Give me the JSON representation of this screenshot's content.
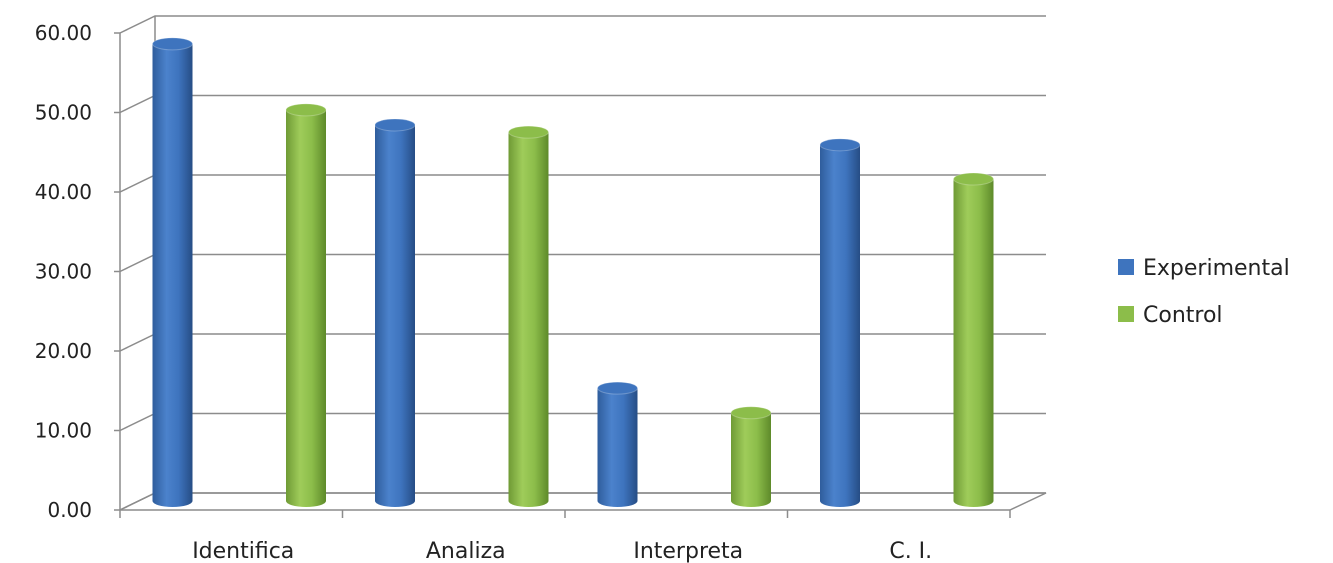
{
  "chart_data": {
    "type": "bar",
    "style": "3d-cylinder",
    "title": "",
    "xlabel": "",
    "ylabel": "",
    "categories": [
      "Identifica",
      "Analiza",
      "Interpreta",
      "C. I."
    ],
    "series": [
      {
        "name": "Experimental",
        "values": [
          57.5,
          47.3,
          14.2,
          44.8
        ],
        "color": "#3e74be"
      },
      {
        "name": "Control",
        "values": [
          49.2,
          46.4,
          11.1,
          40.5
        ],
        "color": "#8cbd4a"
      }
    ],
    "ylim": [
      0,
      60
    ],
    "yticks": [
      "0.00",
      "10.00",
      "20.00",
      "30.00",
      "40.00",
      "50.00",
      "60.00"
    ],
    "grid": true,
    "legend": "right"
  }
}
